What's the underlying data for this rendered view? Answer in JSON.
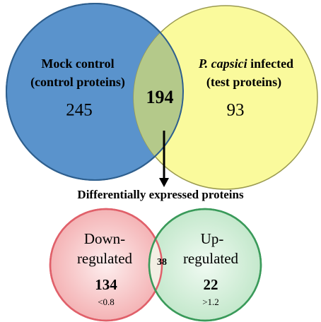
{
  "top_venn": {
    "left": {
      "lines": [
        "Mock control",
        "(control proteins)"
      ],
      "count": "245"
    },
    "right": {
      "title_italic": "P. capsici",
      "title_rest": " infected",
      "subtitle": "(test proteins)",
      "count": "93"
    },
    "intersection": "194"
  },
  "caption": "Differentially expressed proteins",
  "bottom_venn": {
    "left": {
      "lines": [
        "Down-",
        "regulated"
      ],
      "count": "134",
      "threshold": "<0.8"
    },
    "right": {
      "lines": [
        "Up-",
        "regulated"
      ],
      "count": "22",
      "threshold": ">1.2"
    },
    "intersection": "38"
  }
}
